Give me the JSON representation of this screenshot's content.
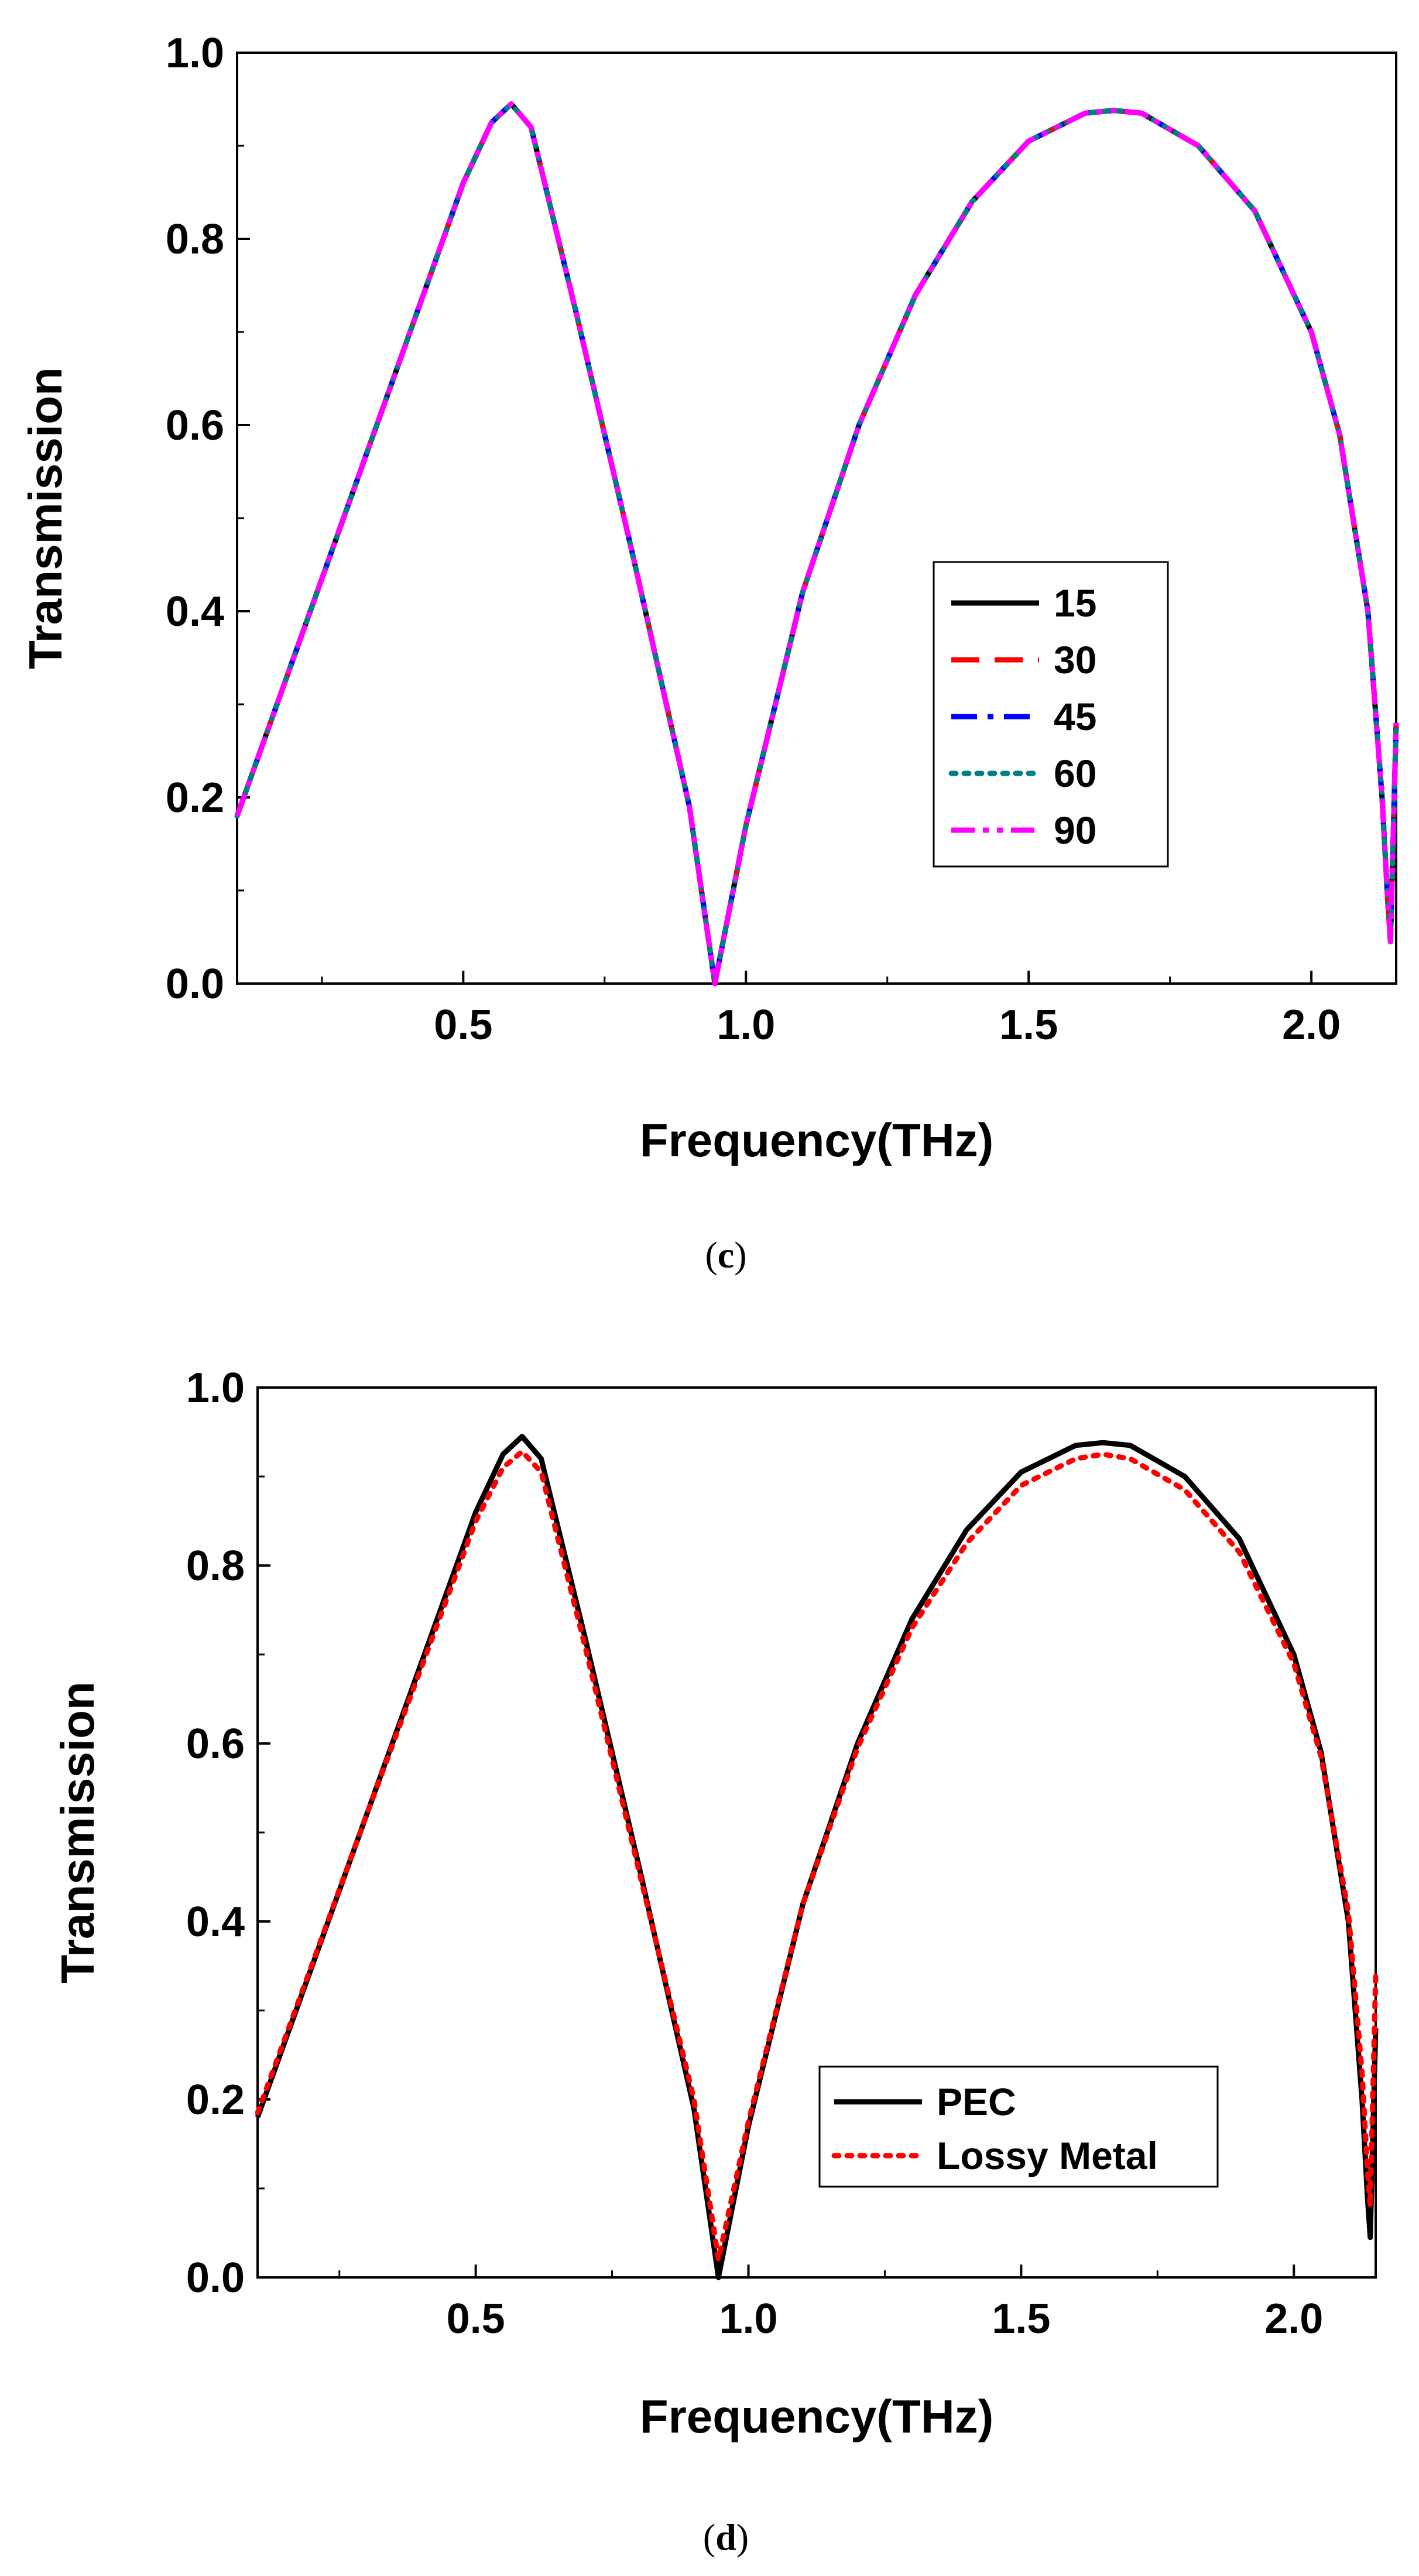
{
  "chart_data": [
    {
      "type": "line",
      "panel_label": "c",
      "xlabel": "Frequency(THz)",
      "ylabel": "Transmission",
      "xlim": [
        0.1,
        2.15
      ],
      "ylim": [
        0.0,
        1.0
      ],
      "x_ticks": [
        0.5,
        1.0,
        1.5,
        2.0
      ],
      "x_tick_labels": [
        "0.5",
        "1.0",
        "1.5",
        "2.0"
      ],
      "y_ticks": [
        0.0,
        0.2,
        0.4,
        0.6,
        0.8,
        1.0
      ],
      "y_tick_labels": [
        "0.0",
        "0.2",
        "0.4",
        "0.6",
        "0.8",
        "1.0"
      ],
      "legend_position": "center-right",
      "series": [
        {
          "name": "15",
          "color": "#000000",
          "dash": "solid",
          "offset": 0.0
        },
        {
          "name": "30",
          "color": "#ff0000",
          "dash": "dash",
          "offset": 0.0
        },
        {
          "name": "45",
          "color": "#0000ff",
          "dash": "dashdot",
          "offset": 0.0
        },
        {
          "name": "60",
          "color": "#008080",
          "dash": "dot",
          "offset": 0.0
        },
        {
          "name": "90",
          "color": "#ff00ff",
          "dash": "dashdotdot",
          "offset": 0.0
        }
      ],
      "curve_points": {
        "x": [
          0.1,
          0.2,
          0.3,
          0.4,
          0.5,
          0.55,
          0.585,
          0.62,
          0.7,
          0.8,
          0.9,
          0.945,
          1.0,
          1.1,
          1.2,
          1.3,
          1.4,
          1.5,
          1.6,
          1.65,
          1.7,
          1.8,
          1.9,
          2.0,
          2.05,
          2.1,
          2.125,
          2.135,
          2.14,
          2.15
        ],
        "y": [
          0.18,
          0.35,
          0.52,
          0.69,
          0.86,
          0.925,
          0.945,
          0.92,
          0.72,
          0.46,
          0.19,
          0.0,
          0.17,
          0.42,
          0.6,
          0.74,
          0.84,
          0.905,
          0.935,
          0.938,
          0.935,
          0.9,
          0.83,
          0.7,
          0.59,
          0.4,
          0.2,
          0.09,
          0.045,
          0.28
        ]
      }
    },
    {
      "type": "line",
      "panel_label": "d",
      "xlabel": "Frequency(THz)",
      "ylabel": "Transmission",
      "xlim": [
        0.1,
        2.15
      ],
      "ylim": [
        0.0,
        1.0
      ],
      "x_ticks": [
        0.5,
        1.0,
        1.5,
        2.0
      ],
      "x_tick_labels": [
        "0.5",
        "1.0",
        "1.5",
        "2.0"
      ],
      "y_ticks": [
        0.0,
        0.2,
        0.4,
        0.6,
        0.8,
        1.0
      ],
      "y_tick_labels": [
        "0.0",
        "0.2",
        "0.4",
        "0.6",
        "0.8",
        "1.0"
      ],
      "legend_position": "bottom-right",
      "series": [
        {
          "name": "PEC",
          "color": "#000000",
          "dash": "solid",
          "x": [
            0.1,
            0.2,
            0.3,
            0.4,
            0.5,
            0.55,
            0.585,
            0.62,
            0.7,
            0.8,
            0.9,
            0.945,
            1.0,
            1.1,
            1.2,
            1.3,
            1.4,
            1.5,
            1.6,
            1.65,
            1.7,
            1.8,
            1.9,
            2.0,
            2.05,
            2.1,
            2.125,
            2.135,
            2.14,
            2.15
          ],
          "y": [
            0.18,
            0.35,
            0.52,
            0.69,
            0.86,
            0.925,
            0.945,
            0.92,
            0.72,
            0.46,
            0.19,
            0.0,
            0.17,
            0.42,
            0.6,
            0.74,
            0.84,
            0.905,
            0.935,
            0.938,
            0.935,
            0.9,
            0.83,
            0.7,
            0.59,
            0.4,
            0.2,
            0.09,
            0.045,
            0.28
          ]
        },
        {
          "name": "Lossy Metal",
          "color": "#ff0000",
          "dash": "dot",
          "x": [
            0.1,
            0.2,
            0.3,
            0.4,
            0.5,
            0.55,
            0.585,
            0.62,
            0.7,
            0.8,
            0.9,
            0.945,
            1.0,
            1.1,
            1.2,
            1.3,
            1.4,
            1.5,
            1.6,
            1.65,
            1.7,
            1.8,
            1.9,
            2.0,
            2.05,
            2.1,
            2.125,
            2.135,
            2.14,
            2.15
          ],
          "y": [
            0.185,
            0.352,
            0.52,
            0.685,
            0.85,
            0.91,
            0.928,
            0.905,
            0.71,
            0.455,
            0.2,
            0.02,
            0.175,
            0.42,
            0.595,
            0.73,
            0.825,
            0.89,
            0.92,
            0.925,
            0.92,
            0.885,
            0.815,
            0.69,
            0.585,
            0.41,
            0.23,
            0.12,
            0.08,
            0.34
          ]
        }
      ]
    }
  ],
  "captions": {
    "c": {
      "open": "(",
      "letter": "c",
      "close": ")"
    },
    "d": {
      "open": "(",
      "letter": "d",
      "close": ")"
    }
  }
}
